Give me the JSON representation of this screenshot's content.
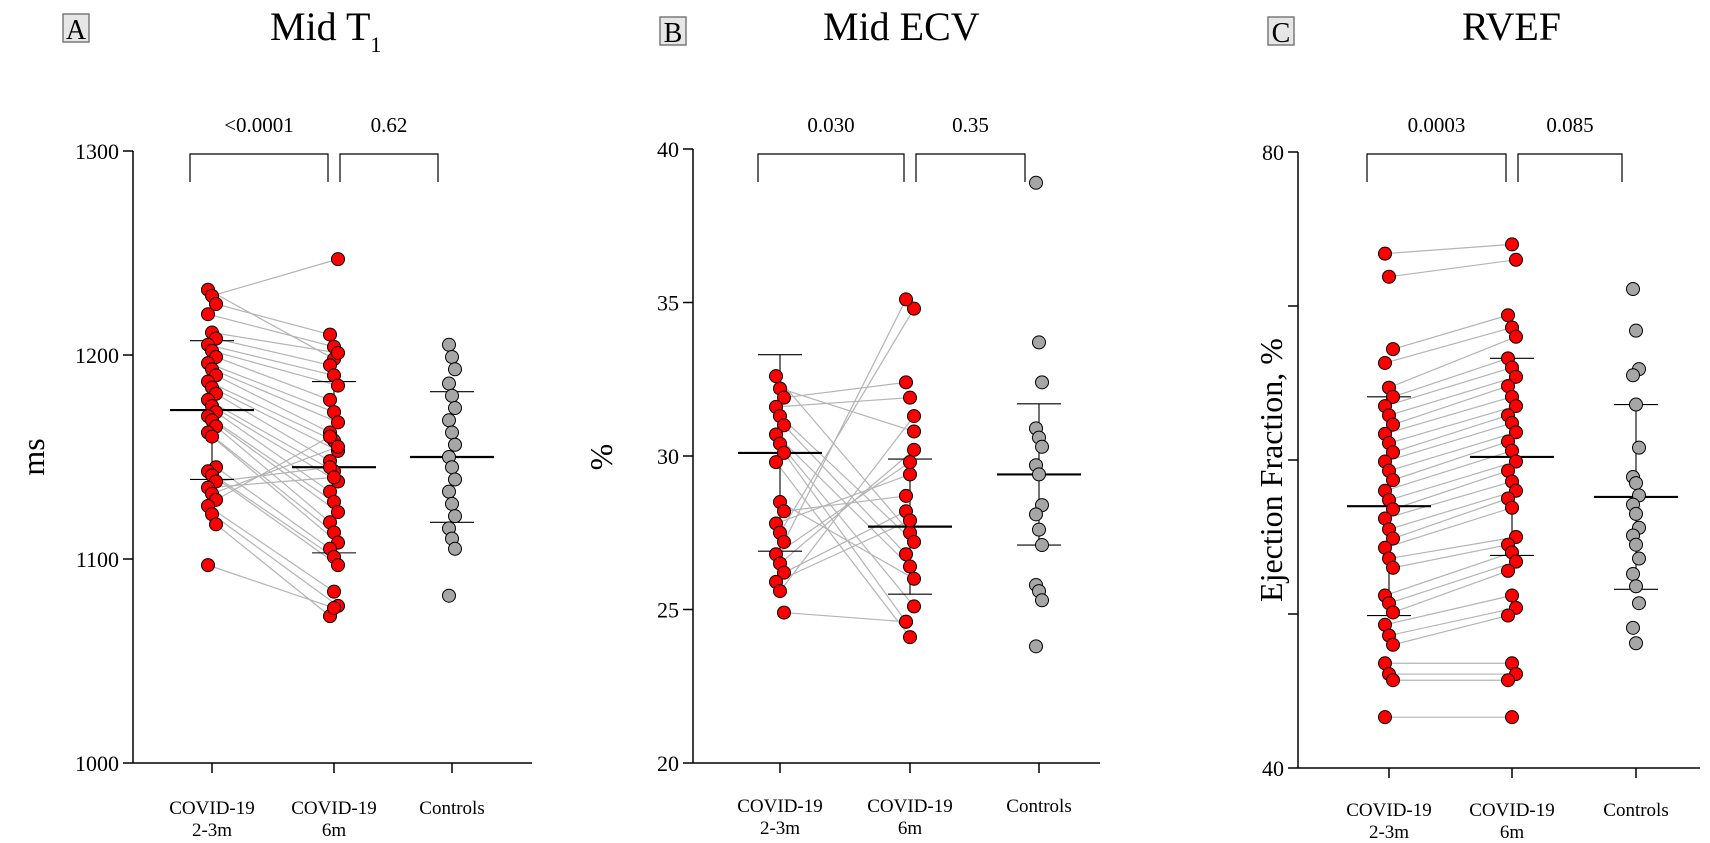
{
  "colors": {
    "covid": "#ff0000",
    "control": "#a6a6a6",
    "pair_line": "#b4b4b4"
  },
  "chart_data": [
    {
      "type": "scatter",
      "panel": "A",
      "title": "Mid T",
      "title_subscript": "1",
      "ylabel": "ms",
      "ylim": [
        1000,
        1300
      ],
      "yticks": [
        1000,
        1100,
        1200,
        1300
      ],
      "categories": [
        "COVID-19\n2-3m",
        "COVID-19\n6m",
        "Controls"
      ],
      "category_lines": [
        [
          "COVID-19",
          "2-3m"
        ],
        [
          "COVID-19",
          "6m"
        ],
        [
          "Controls"
        ]
      ],
      "comparisons": [
        {
          "from": 0,
          "to": 1,
          "label": "<0.0001"
        },
        {
          "from": 1,
          "to": 2,
          "label": "0.62"
        }
      ],
      "paired": [
        [
          1232,
          1198
        ],
        [
          1229,
          1247
        ],
        [
          1225,
          1210
        ],
        [
          1220,
          1204
        ],
        [
          1211,
          1201
        ],
        [
          1208,
          1195
        ],
        [
          1205,
          1190
        ],
        [
          1202,
          1185
        ],
        [
          1199,
          1178
        ],
        [
          1196,
          1172
        ],
        [
          1193,
          1167
        ],
        [
          1190,
          1162
        ],
        [
          1187,
          1158
        ],
        [
          1184,
          1153
        ],
        [
          1181,
          1148
        ],
        [
          1178,
          1143
        ],
        [
          1175,
          1138
        ],
        [
          1172,
          1133
        ],
        [
          1170,
          1128
        ],
        [
          1168,
          1123
        ],
        [
          1165,
          1118
        ],
        [
          1162,
          1113
        ],
        [
          1160,
          1108
        ],
        [
          1145,
          1105
        ],
        [
          1143,
          1101
        ],
        [
          1141,
          1097
        ],
        [
          1138,
          1145
        ],
        [
          1135,
          1140
        ],
        [
          1132,
          1155
        ],
        [
          1129,
          1160
        ],
        [
          1126,
          1084
        ],
        [
          1122,
          1077
        ],
        [
          1117,
          1072
        ],
        [
          1097,
          1076
        ]
      ],
      "controls": [
        1205,
        1199,
        1193,
        1186,
        1180,
        1174,
        1168,
        1162,
        1156,
        1150,
        1145,
        1139,
        1133,
        1127,
        1121,
        1115,
        1110,
        1105,
        1082
      ],
      "stats": [
        {
          "mean": 1173,
          "sd": 34
        },
        {
          "mean": 1145,
          "sd": 42
        },
        {
          "mean": 1150,
          "sd": 32
        }
      ]
    },
    {
      "type": "scatter",
      "panel": "B",
      "title": "Mid ECV",
      "title_subscript": "",
      "ylabel": "%",
      "ylim": [
        20,
        40
      ],
      "yticks": [
        20,
        25,
        30,
        35,
        40
      ],
      "categories": [
        "COVID-19\n2-3m",
        "COVID-19\n6m",
        "Controls"
      ],
      "category_lines": [
        [
          "COVID-19",
          "2-3m"
        ],
        [
          "COVID-19",
          "6m"
        ],
        [
          "Controls"
        ]
      ],
      "comparisons": [
        {
          "from": 0,
          "to": 1,
          "label": "0.030"
        },
        {
          "from": 1,
          "to": 2,
          "label": "0.35"
        }
      ],
      "paired": [
        [
          32.6,
          27.5
        ],
        [
          32.2,
          30.8
        ],
        [
          31.9,
          32.4
        ],
        [
          31.6,
          31.9
        ],
        [
          31.3,
          27.2
        ],
        [
          31.0,
          26.8
        ],
        [
          30.7,
          26.4
        ],
        [
          30.4,
          25.1
        ],
        [
          30.1,
          24.6
        ],
        [
          29.8,
          24.1
        ],
        [
          28.5,
          26.0
        ],
        [
          28.2,
          28.7
        ],
        [
          27.8,
          29.4
        ],
        [
          27.5,
          34.8
        ],
        [
          27.2,
          35.1
        ],
        [
          26.8,
          29.8
        ],
        [
          26.5,
          30.2
        ],
        [
          26.2,
          28.2
        ],
        [
          25.9,
          27.9
        ],
        [
          25.6,
          31.3
        ],
        [
          24.9,
          24.6
        ]
      ],
      "controls": [
        38.9,
        33.7,
        32.4,
        30.9,
        30.6,
        30.3,
        29.7,
        29.4,
        28.4,
        28.1,
        27.6,
        27.1,
        25.8,
        25.6,
        25.3,
        23.8
      ],
      "stats": [
        {
          "mean": 30.1,
          "sd": 3.2
        },
        {
          "mean": 27.7,
          "sd": 2.2
        },
        {
          "mean": 29.4,
          "sd": 2.3
        }
      ]
    },
    {
      "type": "scatter",
      "panel": "C",
      "title": "RVEF",
      "title_subscript": "",
      "ylabel": "Ejection Fraction, %",
      "ylim": [
        40,
        80
      ],
      "yticks": [
        40,
        50,
        60,
        70,
        80
      ],
      "yticklabels": [
        "40",
        "",
        "",
        "",
        "80"
      ],
      "categories": [
        "COVID-19\n2-3m",
        "COVID-19\n6m",
        "Controls"
      ],
      "category_lines": [
        [
          "COVID-19",
          "2-3m"
        ],
        [
          "COVID-19",
          "6m"
        ],
        [
          "Controls"
        ]
      ],
      "comparisons": [
        {
          "from": 0,
          "to": 1,
          "label": "0.0003"
        },
        {
          "from": 1,
          "to": 2,
          "label": "0.085"
        }
      ],
      "paired": [
        [
          73.4,
          74.0
        ],
        [
          71.9,
          73.0
        ],
        [
          67.2,
          69.4
        ],
        [
          66.3,
          68.6
        ],
        [
          64.7,
          68.0
        ],
        [
          64.1,
          66.6
        ],
        [
          63.5,
          66.0
        ],
        [
          62.9,
          65.4
        ],
        [
          62.3,
          64.8
        ],
        [
          61.7,
          64.1
        ],
        [
          61.1,
          63.5
        ],
        [
          60.5,
          62.9
        ],
        [
          59.9,
          62.4
        ],
        [
          59.3,
          61.8
        ],
        [
          58.7,
          61.2
        ],
        [
          58.0,
          60.6
        ],
        [
          57.4,
          59.9
        ],
        [
          56.8,
          59.3
        ],
        [
          56.2,
          58.6
        ],
        [
          55.5,
          58.0
        ],
        [
          54.9,
          57.5
        ],
        [
          54.3,
          56.9
        ],
        [
          53.6,
          55.0
        ],
        [
          53.0,
          54.5
        ],
        [
          51.2,
          54.0
        ],
        [
          50.7,
          53.4
        ],
        [
          50.1,
          52.8
        ],
        [
          49.3,
          51.2
        ],
        [
          48.6,
          50.4
        ],
        [
          48.0,
          49.9
        ],
        [
          46.8,
          46.8
        ],
        [
          46.1,
          46.1
        ],
        [
          45.7,
          45.7
        ],
        [
          43.3,
          43.3
        ]
      ],
      "controls": [
        71.1,
        68.4,
        65.9,
        65.5,
        63.6,
        60.8,
        58.9,
        58.5,
        57.7,
        57.1,
        56.5,
        55.6,
        55.1,
        54.5,
        53.6,
        52.6,
        51.8,
        50.7,
        49.1,
        48.1
      ],
      "stats": [
        {
          "mean": 57.0,
          "sd": 7.1
        },
        {
          "mean": 60.2,
          "sd": 6.4
        },
        {
          "mean": 57.6,
          "sd": 6.0
        }
      ]
    }
  ]
}
